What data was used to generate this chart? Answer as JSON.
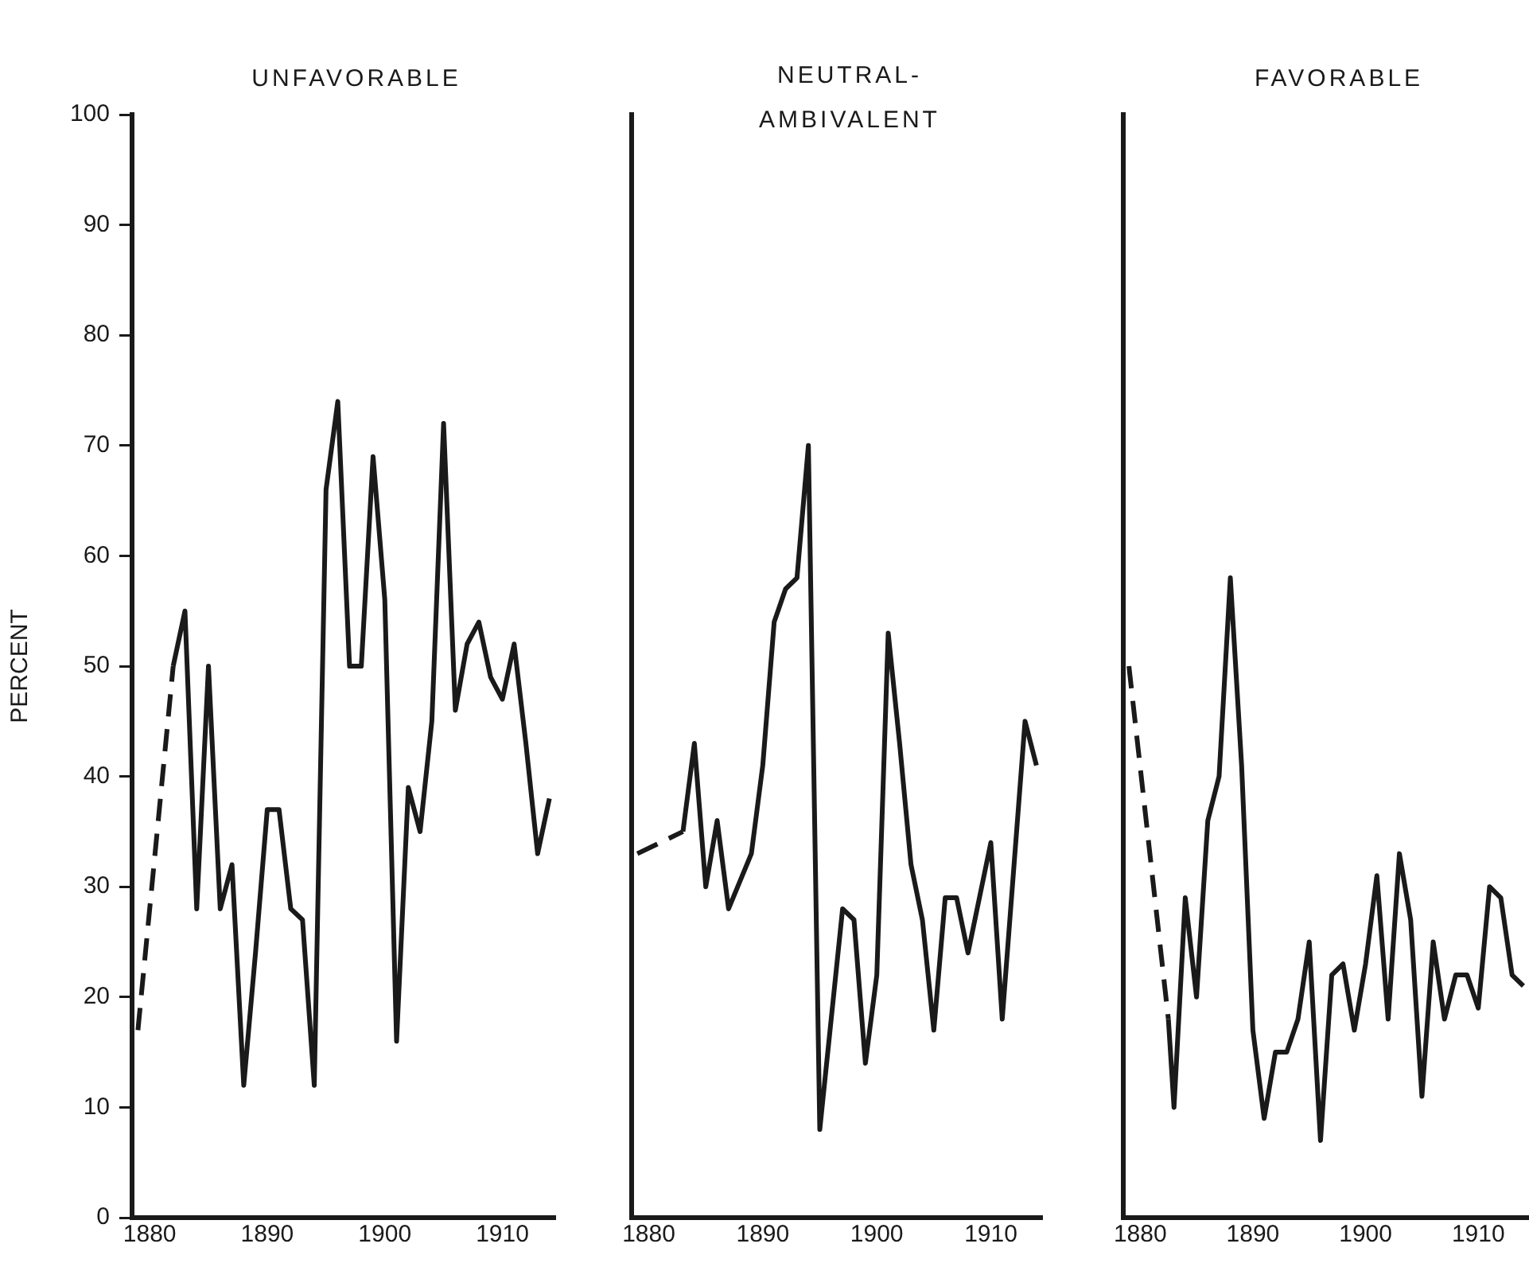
{
  "chart_data": [
    {
      "type": "line",
      "title": "UNFAVORABLE",
      "ylabel": "PERCENT",
      "xlim": [
        1878.5,
        1914.5
      ],
      "xticks": [
        1880,
        1890,
        1900,
        1910
      ],
      "ylim": [
        0,
        100
      ],
      "yticks": [
        0,
        10,
        20,
        30,
        40,
        50,
        60,
        70,
        80,
        90,
        100
      ],
      "marker": "none",
      "series": [
        {
          "color": "#1a1a1a",
          "line_style": "dashed",
          "x": [
            1879,
            1882
          ],
          "values": [
            17,
            50
          ]
        },
        {
          "color": "#1a1a1a",
          "line_style": "solid",
          "x": [
            1882,
            1883,
            1884,
            1885,
            1886,
            1887,
            1888,
            1889,
            1890,
            1891,
            1892,
            1893,
            1894,
            1895,
            1896,
            1897,
            1898,
            1899,
            1900,
            1901,
            1902,
            1903,
            1904,
            1905,
            1906,
            1907,
            1908,
            1909,
            1910,
            1911,
            1912,
            1913,
            1914
          ],
          "values": [
            50,
            55,
            28,
            50,
            28,
            32,
            12,
            24,
            37,
            37,
            28,
            27,
            12,
            66,
            74,
            50,
            50,
            69,
            56,
            16,
            39,
            35,
            45,
            72,
            46,
            52,
            54,
            49,
            47,
            52,
            43,
            33,
            38
          ]
        }
      ]
    },
    {
      "type": "line",
      "title": "NEUTRAL-AMBIVALENT",
      "xlim": [
        1878.5,
        1914.5
      ],
      "xticks": [
        1880,
        1890,
        1900,
        1910
      ],
      "ylim": [
        0,
        100
      ],
      "yticks": [
        0,
        10,
        20,
        30,
        40,
        50,
        60,
        70,
        80,
        90,
        100
      ],
      "tick_labels": "x",
      "marker": "none",
      "series": [
        {
          "color": "#1a1a1a",
          "line_style": "dashed",
          "x": [
            1879,
            1883
          ],
          "values": [
            33,
            35
          ]
        },
        {
          "color": "#1a1a1a",
          "line_style": "solid",
          "x": [
            1883,
            1884,
            1885,
            1886,
            1887,
            1889,
            1890,
            1891,
            1892,
            1893,
            1894,
            1895,
            1897,
            1898,
            1899,
            1900,
            1901,
            1902,
            1903,
            1904,
            1905,
            1906,
            1907,
            1908,
            1910,
            1911,
            1913,
            1914
          ],
          "values": [
            35,
            43,
            30,
            36,
            28,
            33,
            41,
            54,
            57,
            58,
            70,
            8,
            28,
            27,
            14,
            22,
            53,
            43,
            32,
            27,
            17,
            29,
            29,
            24,
            34,
            18,
            45,
            41
          ]
        }
      ]
    },
    {
      "type": "line",
      "title": "FAVORABLE",
      "xlim": [
        1878.5,
        1914.5
      ],
      "xticks": [
        1880,
        1890,
        1900,
        1910
      ],
      "ylim": [
        0,
        100
      ],
      "yticks": [
        0,
        10,
        20,
        30,
        40,
        50,
        60,
        70,
        80,
        90,
        100
      ],
      "tick_labels": "x",
      "marker": "none",
      "series": [
        {
          "color": "#1a1a1a",
          "line_style": "dashed",
          "x": [
            1879,
            1882.5
          ],
          "values": [
            50,
            18
          ]
        },
        {
          "color": "#1a1a1a",
          "line_style": "solid",
          "x": [
            1882.5,
            1883,
            1884,
            1885,
            1886,
            1887,
            1888,
            1889,
            1890,
            1891,
            1892,
            1893,
            1894,
            1895,
            1896,
            1897,
            1898,
            1899,
            1900,
            1901,
            1902,
            1903,
            1904,
            1905,
            1906,
            1907,
            1908,
            1909,
            1910,
            1911,
            1912,
            1913,
            1914
          ],
          "values": [
            18,
            10,
            29,
            20,
            36,
            40,
            58,
            41,
            17,
            9,
            15,
            15,
            18,
            25,
            7,
            22,
            23,
            17,
            23,
            31,
            18,
            33,
            27,
            11,
            25,
            18,
            22,
            22,
            19,
            30,
            29,
            22,
            21
          ]
        }
      ]
    }
  ]
}
